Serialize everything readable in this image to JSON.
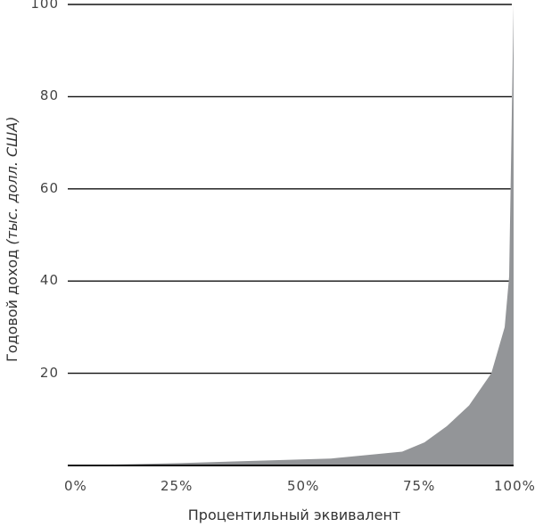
{
  "chart_data": {
    "type": "area",
    "title": "",
    "xlabel": "Процентильный эквивалент",
    "ylabel": "Годовой доход",
    "ylabel_units": "(тыс. долл. США)",
    "x_ticks": [
      "0%",
      "25%",
      "50%",
      "75%",
      "100%"
    ],
    "y_ticks": [
      "20",
      "40",
      "60",
      "80",
      "100"
    ],
    "xlim": [
      0,
      100
    ],
    "ylim": [
      0,
      100
    ],
    "grid": "horizontal",
    "fill_color": "#939598",
    "x": [
      0,
      25,
      59,
      75,
      80,
      85,
      90,
      95,
      98,
      99,
      100
    ],
    "values": [
      0,
      0.5,
      1.5,
      3,
      5,
      8.5,
      13,
      20,
      30,
      41,
      100
    ]
  },
  "axes": {
    "xlabel": "Процентильный эквивалент",
    "ylabel_main": "Годовой доход ",
    "ylabel_italic": "(тыс. долл. США)"
  }
}
